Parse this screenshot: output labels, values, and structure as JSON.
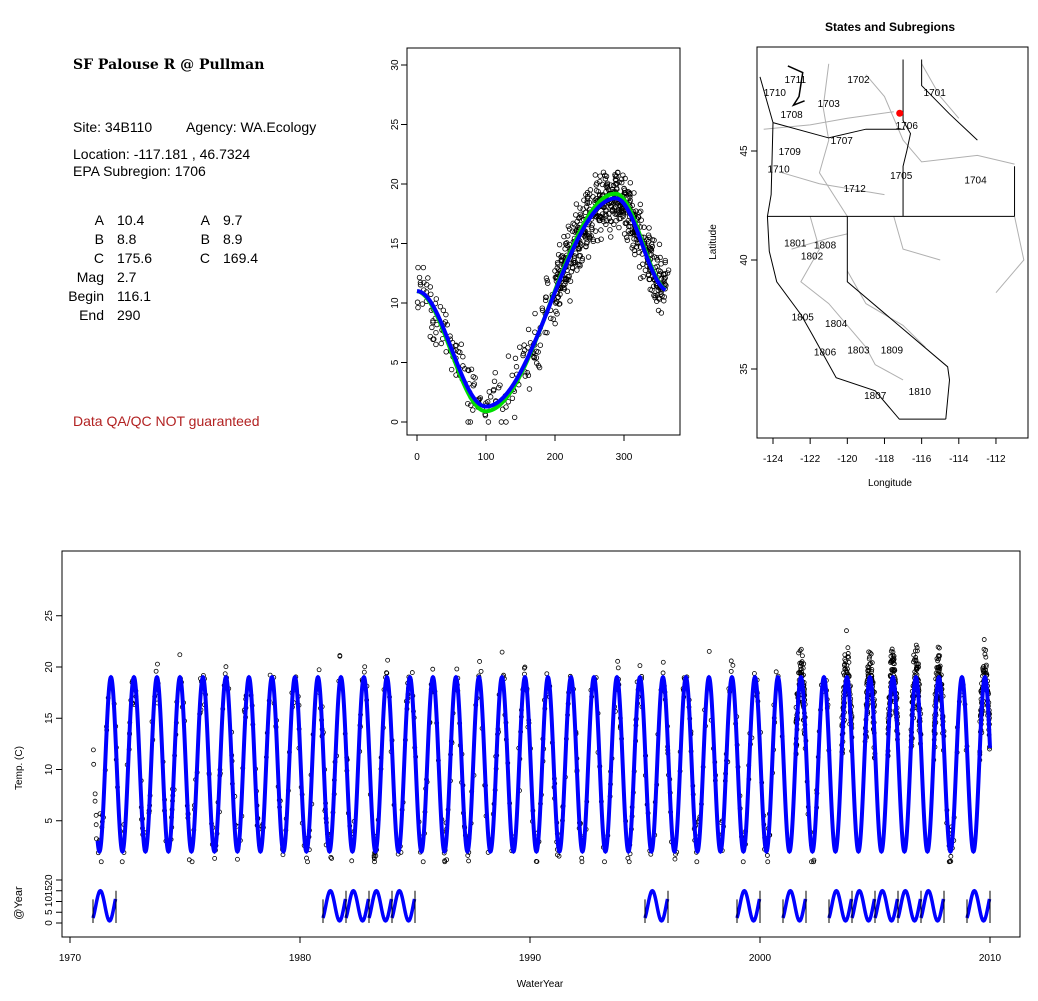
{
  "info": {
    "title": "SF Palouse R @ Pullman",
    "site": "Site: 34B110",
    "agency": "Agency: WA.Ecology",
    "location": "Location: -117.181 , 46.7324",
    "subregion": "EPA Subregion: 1706",
    "params": [
      {
        "label": "A",
        "v1": "10.4",
        "label2": "A",
        "v2": "9.7"
      },
      {
        "label": "B",
        "v1": "8.8",
        "label2": "B",
        "v2": "8.9"
      },
      {
        "label": "C",
        "v1": "175.6",
        "label2": "C",
        "v2": "169.4"
      },
      {
        "label": "Mag",
        "v1": "2.7"
      },
      {
        "label": "Begin",
        "v1": "116.1"
      },
      {
        "label": "End",
        "v1": "290"
      }
    ],
    "warning": "Data QA/QC NOT guaranteed",
    "warning_color": "#b22222"
  },
  "chart_data": [
    {
      "type": "scatter",
      "title": "",
      "xlabel": "",
      "ylabel": "",
      "xlim": [
        -5,
        365
      ],
      "ylim": [
        -1,
        31
      ],
      "xticks": [
        "0",
        "100",
        "200",
        "300"
      ],
      "yticks": [
        "0",
        "5",
        "10",
        "15",
        "20",
        "25",
        "30"
      ],
      "fit_lines": [
        {
          "name": "fit1",
          "color": "#00dd00"
        },
        {
          "name": "fit2",
          "color": "#0000ff"
        }
      ],
      "curve": {
        "min": 1.3,
        "min_day": 100,
        "max": 18.8,
        "max_day": 288
      }
    },
    {
      "type": "map",
      "title": "States and Subregions",
      "xlabel": "Longitude",
      "ylabel": "Latitude",
      "xticks": [
        "-124",
        "-122",
        "-120",
        "-118",
        "-116",
        "-114",
        "-112"
      ],
      "yticks": [
        "35",
        "40",
        "45"
      ],
      "site": {
        "lon": -117.181,
        "lat": 46.7324,
        "color": "#ff0000"
      },
      "regions": [
        {
          "name": "1711",
          "lon": -122.8,
          "lat": 48.3
        },
        {
          "name": "1702",
          "lon": -119.4,
          "lat": 48.3
        },
        {
          "name": "1710",
          "lon": -123.9,
          "lat": 47.7
        },
        {
          "name": "1701",
          "lon": -115.3,
          "lat": 47.7
        },
        {
          "name": "1703",
          "lon": -121.0,
          "lat": 47.2
        },
        {
          "name": "1708",
          "lon": -123.0,
          "lat": 46.7
        },
        {
          "name": "1706",
          "lon": -116.8,
          "lat": 46.2
        },
        {
          "name": "1707",
          "lon": -120.3,
          "lat": 45.5
        },
        {
          "name": "1709",
          "lon": -123.1,
          "lat": 45.0
        },
        {
          "name": "1710",
          "lon": -123.7,
          "lat": 44.2
        },
        {
          "name": "1705",
          "lon": -117.1,
          "lat": 43.9
        },
        {
          "name": "1704",
          "lon": -113.1,
          "lat": 43.7
        },
        {
          "name": "1712",
          "lon": -119.6,
          "lat": 43.3
        },
        {
          "name": "1801",
          "lon": -122.8,
          "lat": 40.8
        },
        {
          "name": "1808",
          "lon": -121.2,
          "lat": 40.7
        },
        {
          "name": "1802",
          "lon": -121.9,
          "lat": 40.2
        },
        {
          "name": "1805",
          "lon": -122.4,
          "lat": 37.4
        },
        {
          "name": "1804",
          "lon": -120.6,
          "lat": 37.1
        },
        {
          "name": "1806",
          "lon": -121.2,
          "lat": 35.8
        },
        {
          "name": "1803",
          "lon": -119.4,
          "lat": 35.9
        },
        {
          "name": "1809",
          "lon": -117.6,
          "lat": 35.9
        },
        {
          "name": "1807",
          "lon": -118.5,
          "lat": 33.8
        },
        {
          "name": "1810",
          "lon": -116.1,
          "lat": 34.0
        }
      ]
    },
    {
      "type": "line",
      "xlabel": "WaterYear",
      "ylabel": "Temp. (C)",
      "xlim": [
        1967.5,
        2011.5
      ],
      "xticks": [
        "1970",
        "1980",
        "1990",
        "2000",
        "2010"
      ],
      "yticks": [
        "5",
        "10",
        "15",
        "20",
        "25"
      ],
      "fit_color": "#0000ff",
      "fit_range": [
        1971.2,
        2010
      ],
      "fit_min": 2,
      "fit_max": 19,
      "inset": {
        "ylabel": "@Year",
        "yticks": [
          "0",
          "5",
          "10",
          "15",
          "20"
        ],
        "years": [
          1971,
          1981,
          1982,
          1983,
          1984,
          1995,
          1999,
          2001,
          2003,
          2004,
          2005,
          2006,
          2007,
          2009
        ]
      }
    }
  ]
}
